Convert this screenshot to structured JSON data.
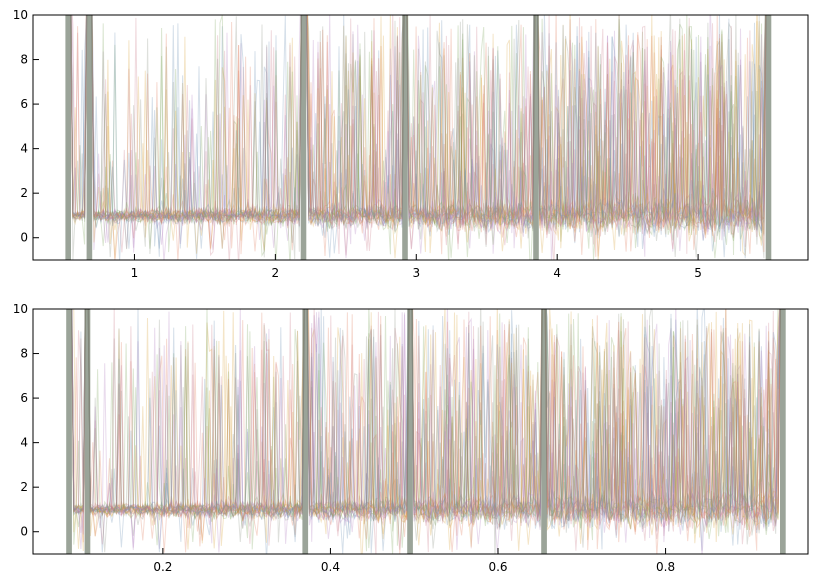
{
  "chart_data": [
    {
      "type": "line",
      "title": "",
      "xlabel": "",
      "ylabel": "",
      "xlim": [
        0.28,
        5.78
      ],
      "ylim": [
        -1,
        10
      ],
      "x_range": [
        0.53,
        5.5
      ],
      "xticks": [
        1,
        2,
        3,
        4,
        5
      ],
      "yticks": [
        0,
        2,
        4,
        6,
        8,
        10
      ],
      "xtick_labels": [
        "1",
        "2",
        "3",
        "4",
        "5"
      ],
      "ytick_labels": [
        "0",
        "2",
        "4",
        "6",
        "8",
        "10"
      ],
      "baseline_median": 1.0,
      "spikes_x": [
        0.53,
        0.68,
        2.2,
        2.92,
        3.85,
        5.5
      ],
      "description_series": "many overlaid semi-transparent spectra",
      "colors": [
        "#e07b5b",
        "#d9a13a",
        "#7fa65f",
        "#6a8fb3",
        "#b07cc0",
        "#c87b8a",
        "#8a8f80"
      ]
    },
    {
      "type": "line",
      "title": "",
      "xlabel": "",
      "ylabel": "",
      "xlim": [
        0.045,
        0.97
      ],
      "ylim": [
        -1,
        10
      ],
      "x_range": [
        0.088,
        0.94
      ],
      "xticks": [
        0.2,
        0.4,
        0.6,
        0.8
      ],
      "yticks": [
        0,
        2,
        4,
        6,
        8,
        10
      ],
      "xtick_labels": [
        "0.2",
        "0.4",
        "0.6",
        "0.8"
      ],
      "ytick_labels": [
        "0",
        "2",
        "4",
        "6",
        "8",
        "10"
      ],
      "baseline_median": 1.0,
      "spikes_x": [
        0.088,
        0.11,
        0.37,
        0.495,
        0.655,
        0.94
      ],
      "description_series": "many overlaid semi-transparent spectra",
      "colors": [
        "#e07b5b",
        "#d9a13a",
        "#7fa65f",
        "#6a8fb3",
        "#b07cc0",
        "#c87b8a",
        "#8a8f80"
      ]
    }
  ]
}
